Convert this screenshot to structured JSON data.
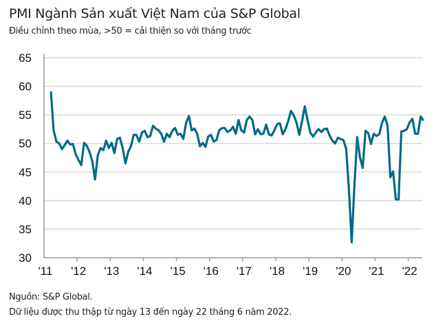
{
  "chart_data": {
    "type": "line",
    "title": "PMI Ngành Sản xuất Việt Nam của S&P Global",
    "subtitle": "Điều chỉnh theo mùa, >50 = cải thiện so với tháng trước",
    "xlabel": "",
    "ylabel": "",
    "ylim": [
      30,
      65
    ],
    "yticks": [
      "65",
      "60",
      "55",
      "50",
      "45",
      "40",
      "35",
      "30"
    ],
    "ytick_values": [
      65,
      60,
      55,
      50,
      45,
      40,
      35,
      30
    ],
    "xticks": [
      "'11",
      "'12",
      "'13",
      "'14",
      "'15",
      "'16",
      "'17",
      "'18",
      "'19",
      "'20",
      "'21",
      "'22"
    ],
    "x_start": "2011-03",
    "x_end": "2022-06",
    "grid": true,
    "line_color": "#006a87",
    "series": [
      {
        "name": "PMI",
        "values": [
          59.1,
          52.3,
          50.3,
          50.0,
          49.0,
          49.7,
          50.5,
          49.8,
          49.9,
          48.1,
          47.1,
          46.2,
          50.1,
          49.6,
          48.5,
          46.9,
          43.7,
          47.9,
          49.2,
          48.8,
          50.5,
          49.2,
          50.1,
          48.3,
          50.8,
          51.0,
          49.2,
          46.5,
          48.5,
          49.5,
          51.5,
          51.5,
          50.3,
          51.9,
          52.2,
          51.1,
          51.3,
          53.1,
          52.6,
          52.3,
          51.7,
          50.3,
          51.7,
          51.1,
          52.2,
          52.7,
          51.5,
          51.7,
          50.8,
          53.6,
          54.8,
          52.3,
          52.6,
          51.7,
          49.5,
          50.1,
          49.4,
          51.2,
          51.5,
          50.3,
          50.6,
          52.3,
          52.7,
          52.7,
          52.0,
          52.3,
          52.9,
          51.7,
          54.1,
          52.3,
          51.9,
          54.1,
          54.7,
          54.1,
          51.6,
          52.5,
          51.6,
          51.7,
          53.3,
          51.6,
          51.4,
          52.3,
          53.4,
          53.5,
          51.6,
          52.5,
          53.9,
          55.7,
          54.9,
          53.7,
          51.5,
          53.9,
          56.5,
          54.1,
          51.9,
          51.2,
          51.9,
          52.5,
          52.0,
          52.5,
          52.6,
          51.4,
          50.5,
          50.0,
          51.0,
          50.8,
          50.6,
          49.0,
          41.9,
          32.7,
          42.7,
          51.1,
          47.6,
          45.7,
          52.2,
          51.8,
          49.9,
          51.7,
          51.3,
          51.6,
          53.6,
          54.7,
          53.1,
          44.1,
          45.1,
          40.2,
          40.2,
          52.1,
          52.2,
          52.5,
          53.7,
          54.3,
          51.7,
          51.7,
          54.7,
          54.0
        ]
      }
    ]
  },
  "footer": {
    "source": "Nguồn: S&P Global.",
    "note": "Dữ liệu được thu thập từ ngày 13 đến ngày 22 tháng 6 năm 2022."
  }
}
